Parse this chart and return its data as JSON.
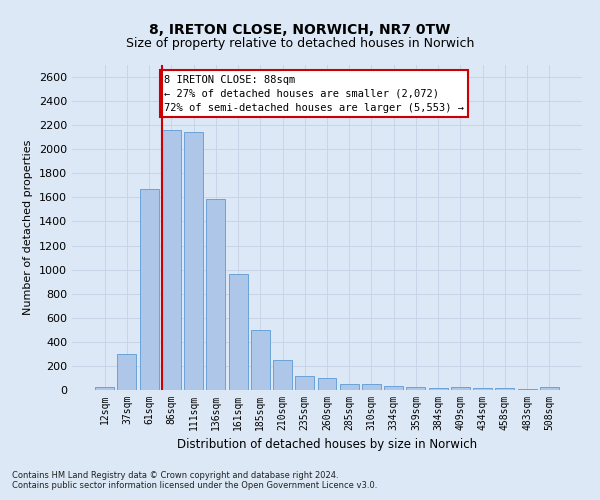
{
  "title": "8, IRETON CLOSE, NORWICH, NR7 0TW",
  "subtitle": "Size of property relative to detached houses in Norwich",
  "xlabel": "Distribution of detached houses by size in Norwich",
  "ylabel": "Number of detached properties",
  "footnote1": "Contains HM Land Registry data © Crown copyright and database right 2024.",
  "footnote2": "Contains public sector information licensed under the Open Government Licence v3.0.",
  "bar_categories": [
    "12sqm",
    "37sqm",
    "61sqm",
    "86sqm",
    "111sqm",
    "136sqm",
    "161sqm",
    "185sqm",
    "210sqm",
    "235sqm",
    "260sqm",
    "285sqm",
    "310sqm",
    "334sqm",
    "359sqm",
    "384sqm",
    "409sqm",
    "434sqm",
    "458sqm",
    "483sqm",
    "508sqm"
  ],
  "bar_values": [
    25,
    300,
    1670,
    2160,
    2140,
    1590,
    960,
    500,
    250,
    120,
    100,
    50,
    50,
    35,
    25,
    20,
    25,
    20,
    20,
    10,
    25
  ],
  "bar_color": "#aec6e8",
  "bar_edgecolor": "#5b9bd5",
  "property_bin_index": 3,
  "vline_color": "#cc0000",
  "annotation_text": "8 IRETON CLOSE: 88sqm\n← 27% of detached houses are smaller (2,072)\n72% of semi-detached houses are larger (5,553) →",
  "annotation_box_color": "#ffffff",
  "annotation_box_edgecolor": "#cc0000",
  "ylim": [
    0,
    2700
  ],
  "yticks": [
    0,
    200,
    400,
    600,
    800,
    1000,
    1200,
    1400,
    1600,
    1800,
    2000,
    2200,
    2400,
    2600
  ],
  "grid_color": "#c8d4e8",
  "bg_color": "#dce8f5",
  "title_fontsize": 10,
  "subtitle_fontsize": 9,
  "ylabel_fontsize": 8,
  "xlabel_fontsize": 8.5
}
